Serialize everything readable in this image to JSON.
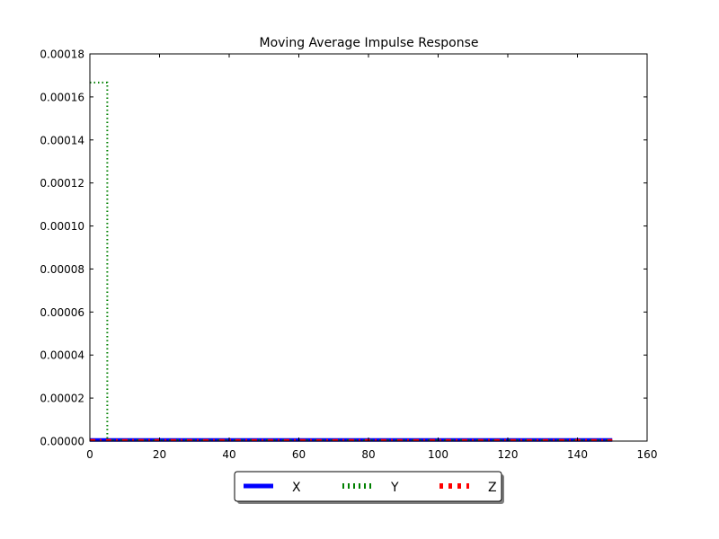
{
  "chart_data": {
    "type": "line",
    "title": "Moving Average Impulse Response",
    "xlabel": "",
    "ylabel": "",
    "xlim": [
      0,
      160
    ],
    "ylim": [
      0,
      0.00018
    ],
    "x_ticks": [
      "0",
      "20",
      "40",
      "60",
      "80",
      "100",
      "120",
      "140",
      "160"
    ],
    "y_ticks": [
      "0.00000",
      "0.00002",
      "0.00004",
      "0.00006",
      "0.00008",
      "0.00010",
      "0.00012",
      "0.00014",
      "0.00016",
      "0.00018"
    ],
    "grid": false,
    "legend_position": "bottom-center",
    "series": [
      {
        "name": "X",
        "color": "#0000ff",
        "style": "solid",
        "x": [
          0,
          150
        ],
        "y": [
          5e-07,
          5e-07
        ]
      },
      {
        "name": "Y",
        "color": "#008000",
        "style": "dotted",
        "x": [
          0,
          5,
          5,
          150
        ],
        "y": [
          0.0001667,
          0.0001667,
          5e-07,
          5e-07
        ]
      },
      {
        "name": "Z",
        "color": "#ff0000",
        "style": "dashdot",
        "x": [
          0,
          150
        ],
        "y": [
          5e-07,
          5e-07
        ]
      }
    ]
  }
}
